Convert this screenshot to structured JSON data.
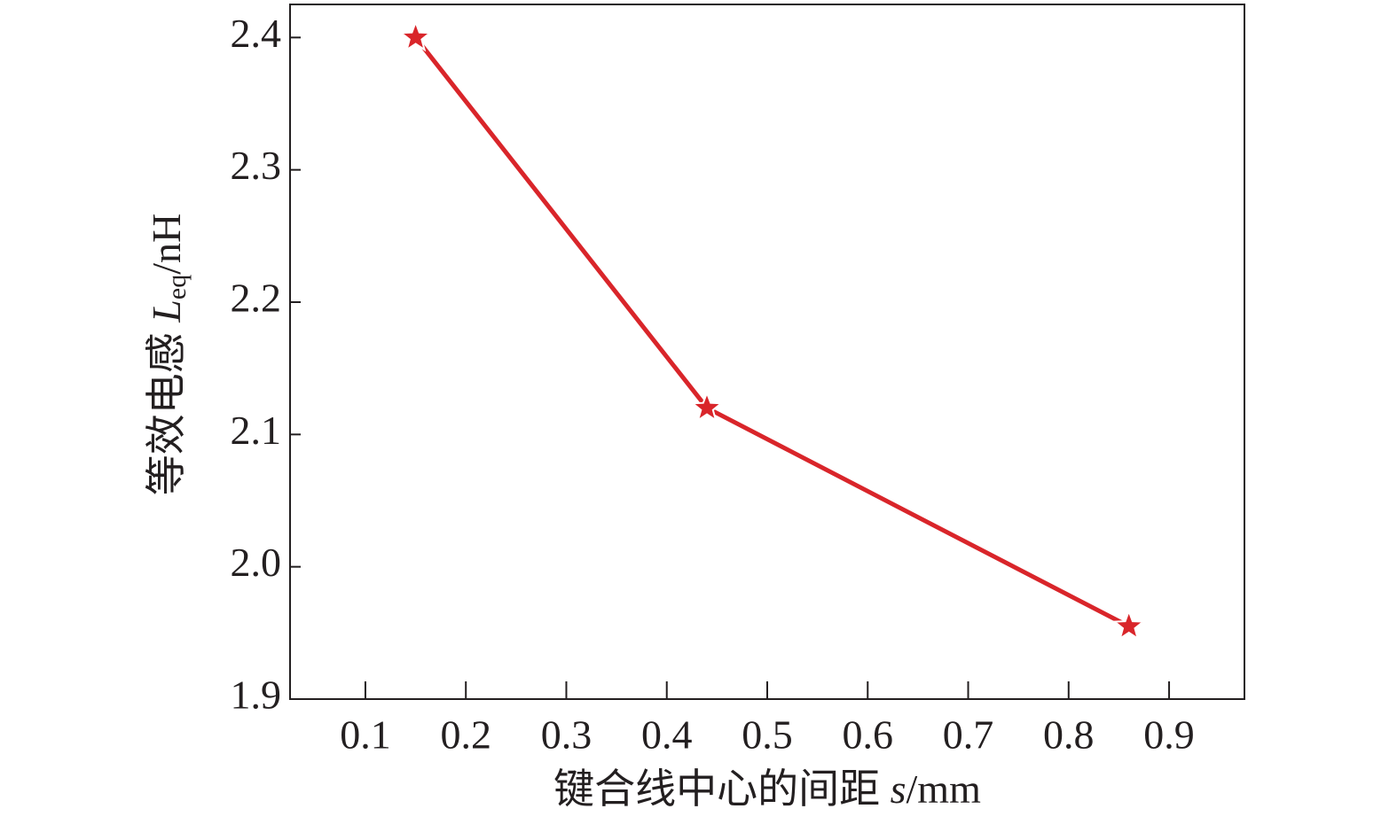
{
  "chart_data": {
    "type": "line",
    "xlabel": [
      "键合线中心的间距 ",
      "s",
      "/mm"
    ],
    "ylabel": [
      "等效电感 ",
      "L",
      "eq",
      "/nH"
    ],
    "x": [
      0.15,
      0.44,
      0.86
    ],
    "series": [
      {
        "color": "#d9252a",
        "marker": "star",
        "values": [
          2.4,
          2.12,
          1.955
        ]
      }
    ],
    "xlim": [
      0.025,
      0.975
    ],
    "xticks": [
      0.1,
      0.2,
      0.3,
      0.4,
      0.5,
      0.6,
      0.7,
      0.8,
      0.9
    ],
    "ylim": [
      1.9,
      2.425
    ],
    "yticks": [
      1.9,
      {
        "value": 2,
        "label": "2.0"
      },
      2.1,
      2.2,
      2.3,
      2.4
    ]
  }
}
